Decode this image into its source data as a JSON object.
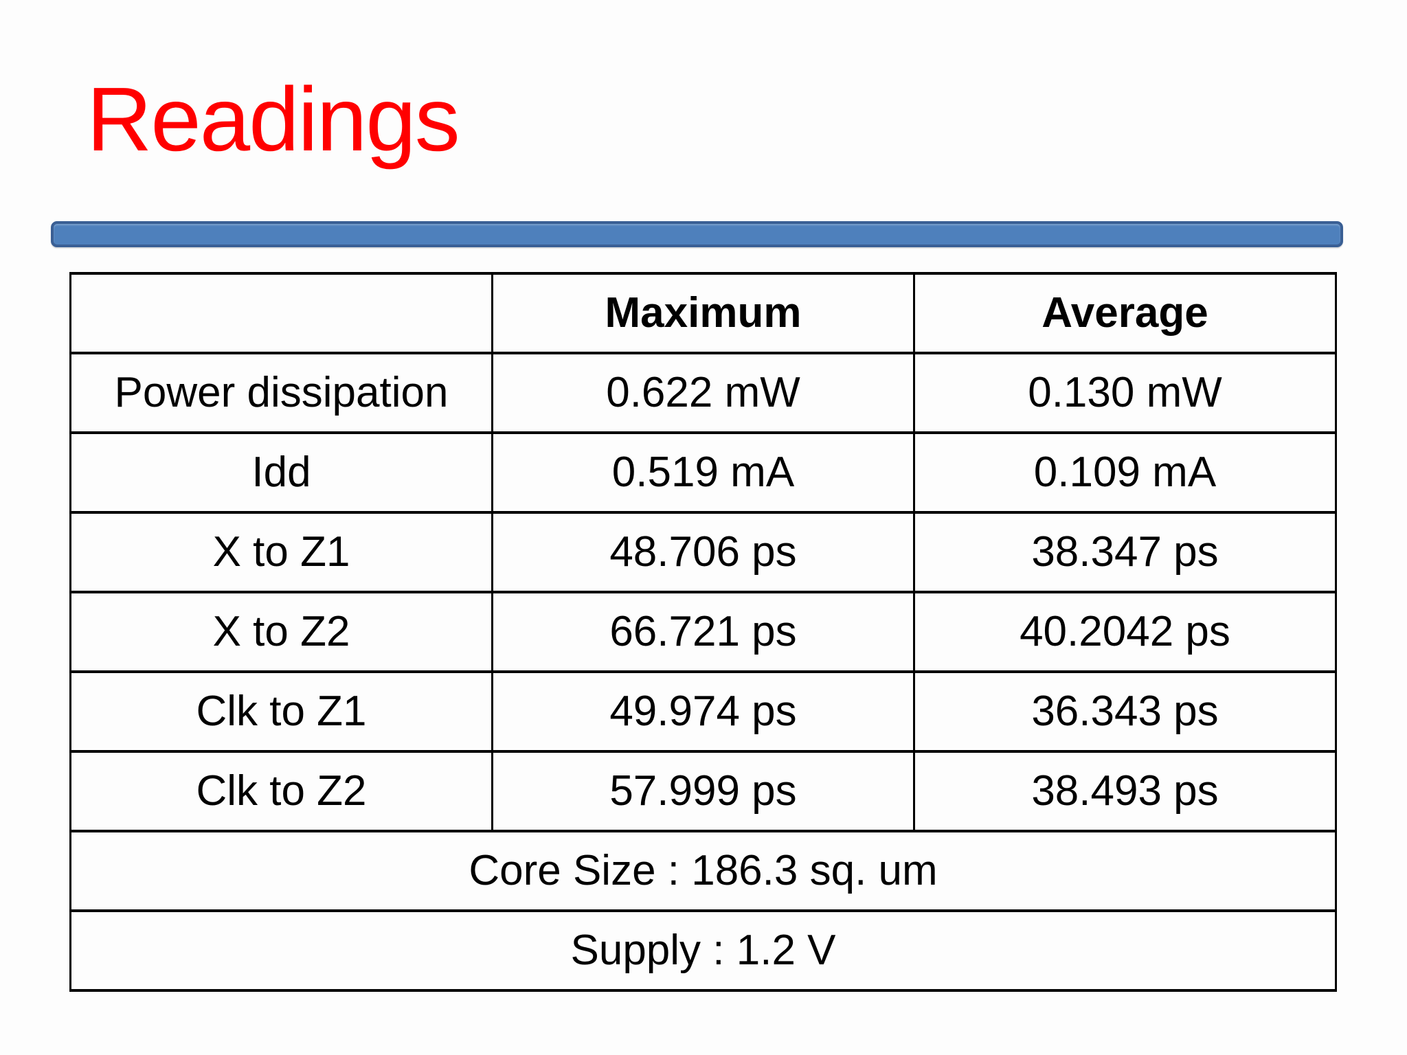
{
  "slide": {
    "title": "Readings"
  },
  "colors": {
    "title_red": "#FF0000",
    "accent_bar_fill": "#4E80BC",
    "accent_bar_border": "#3A5F94",
    "table_border": "#000000"
  },
  "table": {
    "headers": [
      "",
      "Maximum",
      "Average"
    ],
    "rows": [
      {
        "label": "Power dissipation",
        "maximum": "0.622 mW",
        "average": "0.130 mW"
      },
      {
        "label": "Idd",
        "maximum": "0.519 mA",
        "average": "0.109 mA"
      },
      {
        "label": "X to Z1",
        "maximum": "48.706 ps",
        "average": "38.347 ps"
      },
      {
        "label": "X to Z2",
        "maximum": "66.721 ps",
        "average": "40.2042 ps"
      },
      {
        "label": "Clk to Z1",
        "maximum": "49.974 ps",
        "average": "36.343 ps"
      },
      {
        "label": "Clk to Z2",
        "maximum": "57.999 ps",
        "average": "38.493 ps"
      }
    ],
    "footers": [
      "Core Size : 186.3 sq. um",
      "Supply : 1.2 V"
    ]
  }
}
